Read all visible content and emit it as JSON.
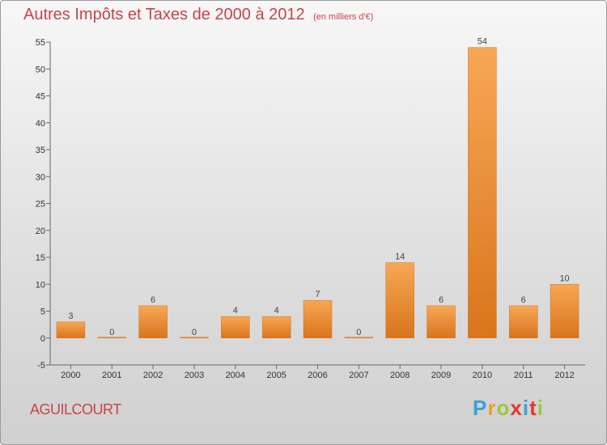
{
  "title": "Autres Impôts et Taxes de 2000 à 2012",
  "subtitle": "(en milliers d'€)",
  "commune": "AGUILCOURT",
  "brand": {
    "text": "Proxiti",
    "letter_colors": [
      "#3aa0d8",
      "#e8a321",
      "#9bc93c",
      "#e6362e",
      "#3aa0d8",
      "#e6362e",
      "#9bc93c"
    ]
  },
  "colors": {
    "bar_light": "#f7a755",
    "bar_dark": "#d9751c",
    "title": "#c8444a"
  },
  "chart_data": {
    "type": "bar",
    "title": "Autres Impôts et Taxes de 2000 à 2012",
    "subtitle": "(en milliers d'€)",
    "categories": [
      "2000",
      "2001",
      "2002",
      "2003",
      "2004",
      "2005",
      "2006",
      "2007",
      "2008",
      "2009",
      "2010",
      "2011",
      "2012"
    ],
    "values": [
      3,
      0,
      6,
      0,
      4,
      4,
      7,
      0,
      14,
      6,
      54,
      6,
      10
    ],
    "data_labels": [
      "3",
      "0",
      "6",
      "0",
      "4",
      "4",
      "7",
      "0",
      "14",
      "6",
      "54",
      "6",
      "10"
    ],
    "yticks": [
      -5,
      0,
      5,
      10,
      15,
      20,
      25,
      30,
      35,
      40,
      45,
      50,
      55
    ],
    "ylim": [
      -5,
      55
    ],
    "xlabel": "",
    "ylabel": "",
    "grid": false,
    "legend": "none"
  }
}
